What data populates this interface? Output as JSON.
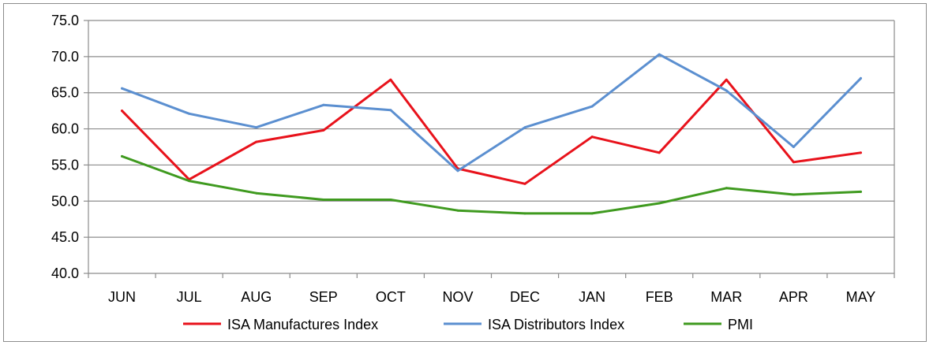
{
  "chart_data": {
    "type": "line",
    "title": "",
    "xlabel": "",
    "ylabel": "",
    "ylim": [
      40,
      75
    ],
    "yticks": [
      40,
      45,
      50,
      55,
      60,
      65,
      70,
      75
    ],
    "ytick_labels": [
      "40.0",
      "45.0",
      "50.0",
      "55.0",
      "60.0",
      "65.0",
      "70.0",
      "75.0"
    ],
    "grid": true,
    "legend_position": "bottom",
    "categories": [
      "JUN",
      "JUL",
      "AUG",
      "SEP",
      "OCT",
      "NOV",
      "DEC",
      "JAN",
      "FEB",
      "MAR",
      "APR",
      "MAY"
    ],
    "series": [
      {
        "name": "ISA Manufactures Index",
        "color": "#e8121b",
        "values": [
          62.5,
          53.0,
          58.2,
          59.8,
          66.8,
          54.5,
          52.4,
          58.9,
          56.7,
          66.8,
          55.4,
          56.7
        ]
      },
      {
        "name": "ISA Distributors Index",
        "color": "#5b8fd0",
        "values": [
          65.6,
          62.1,
          60.2,
          63.3,
          62.6,
          54.2,
          60.2,
          63.1,
          70.3,
          65.3,
          57.5,
          67.0
        ]
      },
      {
        "name": "PMI",
        "color": "#3f9a1f",
        "values": [
          56.2,
          52.8,
          51.1,
          50.2,
          50.2,
          48.7,
          48.3,
          48.3,
          49.7,
          51.8,
          50.9,
          51.3
        ]
      }
    ]
  }
}
